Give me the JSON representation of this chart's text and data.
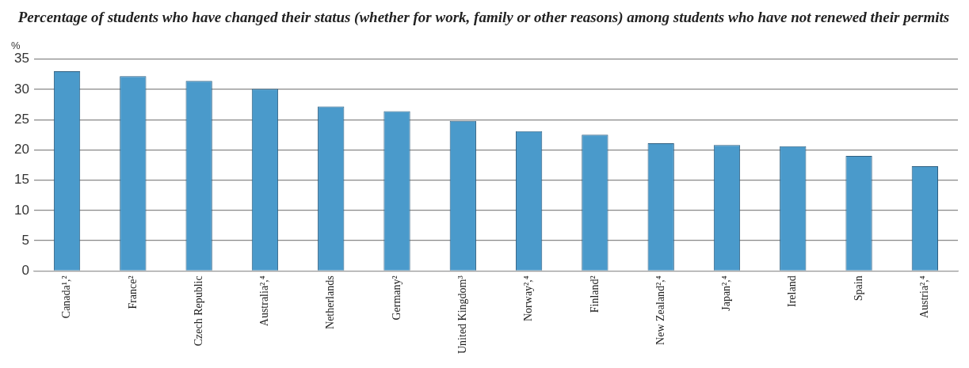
{
  "chart_data": {
    "type": "bar",
    "title": "Percentage of students who have changed their status (whether for work, family or other reasons) among students who have not renewed their permits",
    "ylabel": "%",
    "categories": [
      "Canada¹,²",
      "France²",
      "Czech Republic",
      "Australia²,⁴",
      "Netherlands",
      "Germany²",
      "United Kingdom³",
      "Norway²,⁴",
      "Finland²",
      "New Zealand²,⁴",
      "Japan²,⁴",
      "Ireland",
      "Spain",
      "Austria²,⁴"
    ],
    "values": [
      33.0,
      32.2,
      31.4,
      30.1,
      27.2,
      26.4,
      24.8,
      23.1,
      22.5,
      21.1,
      20.8,
      20.6,
      19.0,
      17.3
    ],
    "color": "#4a9acb",
    "ylim": [
      0,
      35
    ],
    "yticks": [
      0,
      5,
      10,
      15,
      20,
      25,
      30,
      35
    ],
    "grid": "y",
    "legend": false
  }
}
